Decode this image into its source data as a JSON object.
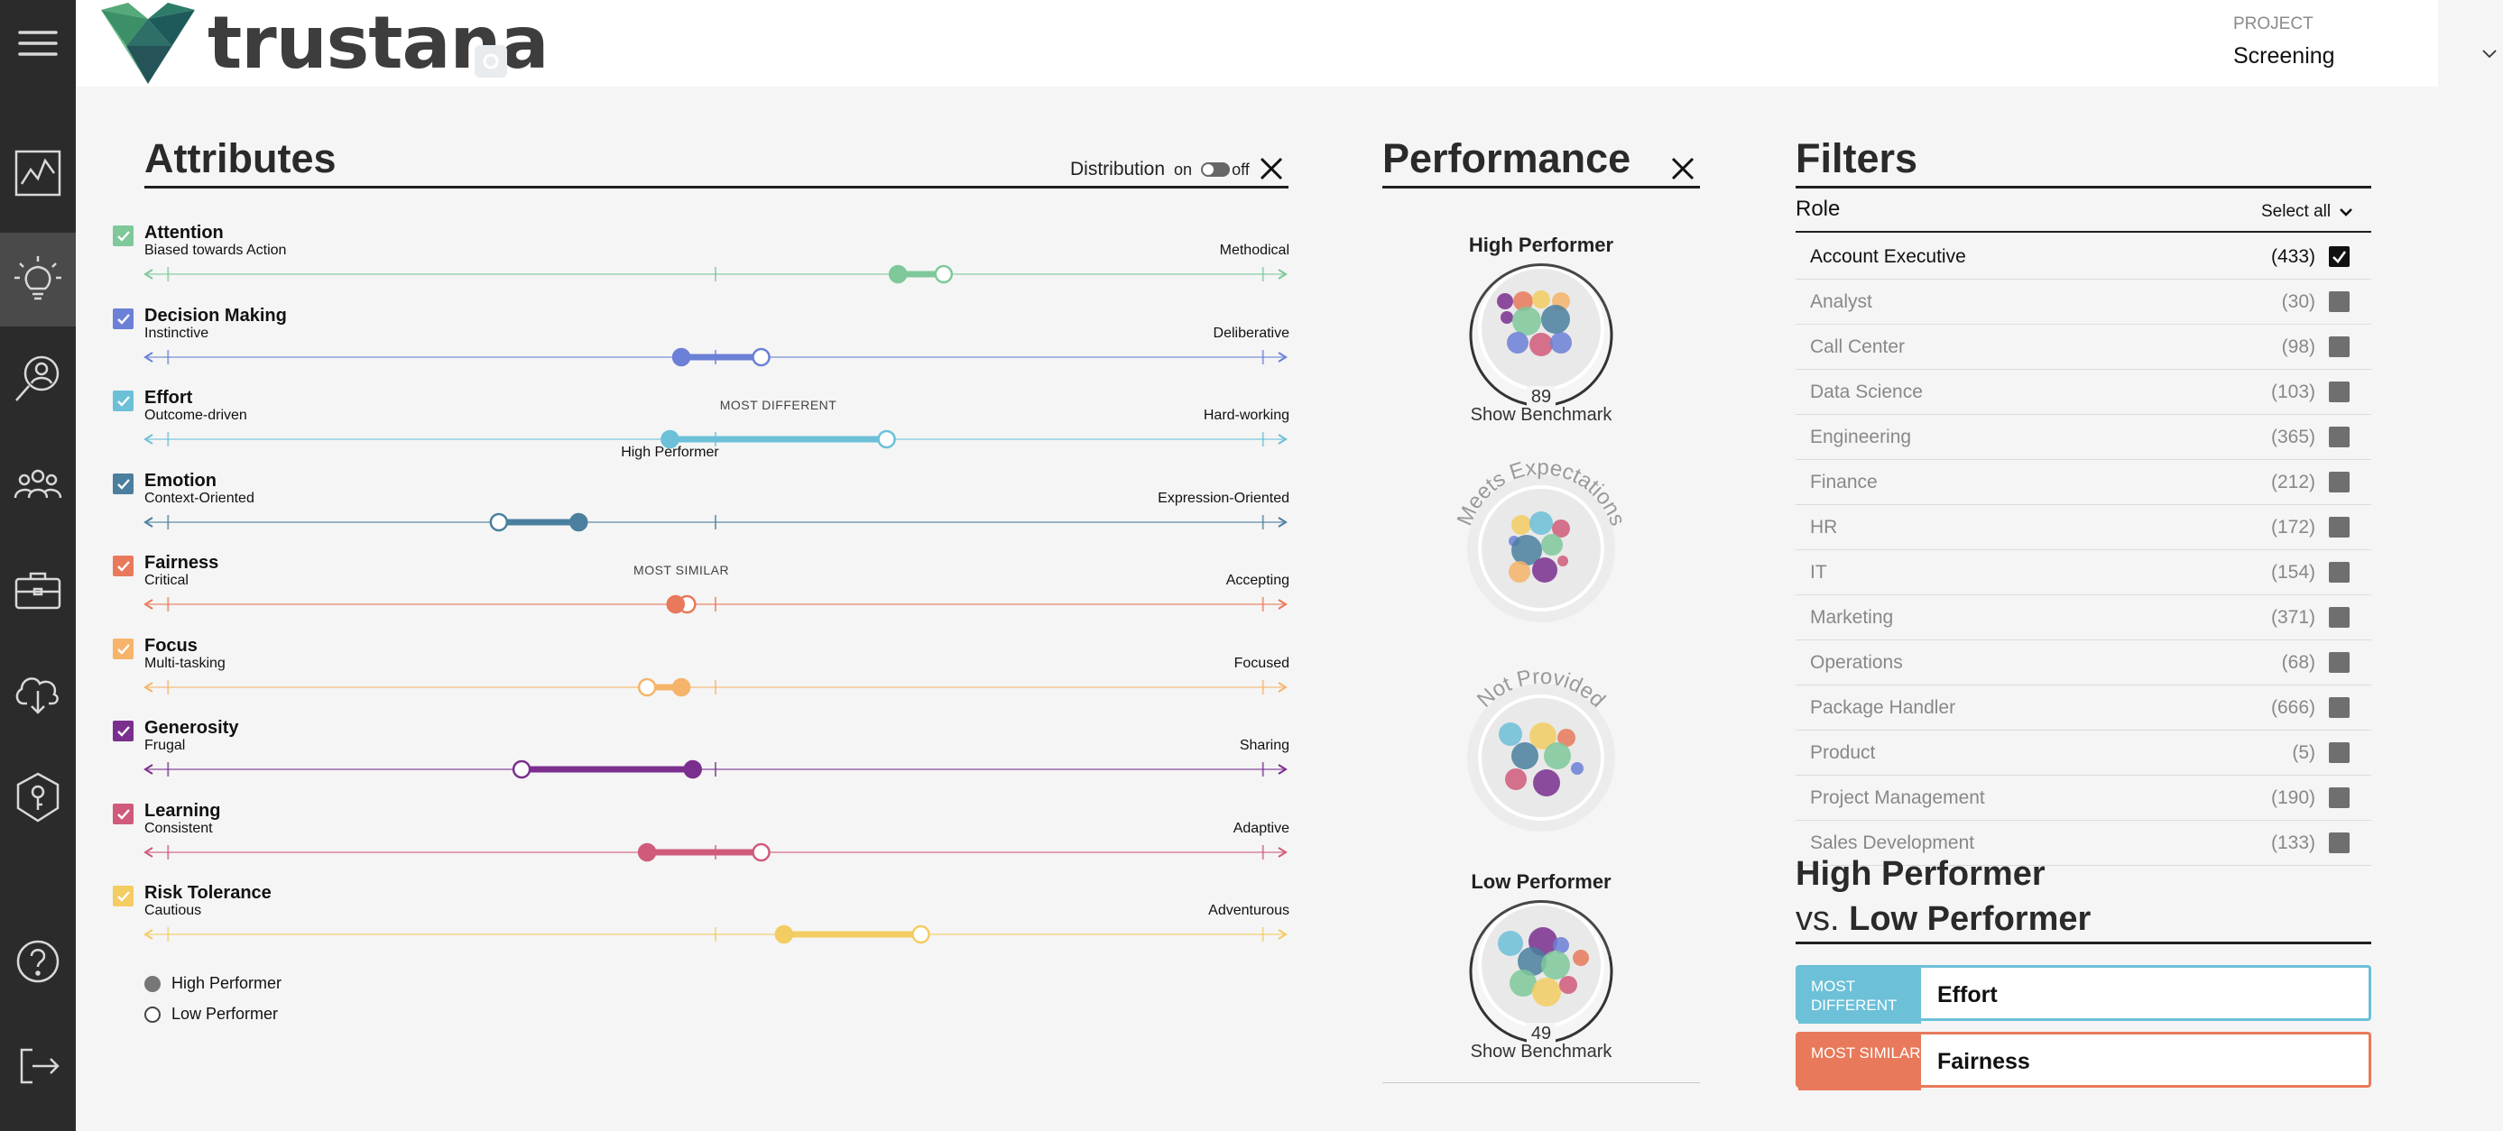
{
  "app": {
    "brand": "trustana"
  },
  "header": {
    "project_label": "PROJECT",
    "project_value": "Screening"
  },
  "sidebar": {
    "items": [
      {
        "icon": "menu-icon"
      },
      {
        "icon": "chart-icon"
      },
      {
        "icon": "lightbulb-icon",
        "active": true
      },
      {
        "icon": "person-search-icon"
      },
      {
        "icon": "team-icon"
      },
      {
        "icon": "briefcase-icon"
      },
      {
        "icon": "download-icon"
      },
      {
        "icon": "key-shield-icon"
      },
      {
        "icon": "help-icon"
      },
      {
        "icon": "logout-icon"
      }
    ]
  },
  "attributes": {
    "title": "Attributes",
    "distribution_label": "Distribution",
    "toggle_on": "on",
    "toggle_off": "off",
    "items": [
      {
        "name": "Attention",
        "low": "Biased towards Action",
        "high": "Methodical",
        "color": "#7ec89a",
        "high_performer": 0.66,
        "low_performer": 0.7
      },
      {
        "name": "Decision Making",
        "low": "Instinctive",
        "high": "Deliberative",
        "color": "#6b80d6",
        "high_performer": 0.47,
        "low_performer": 0.54
      },
      {
        "name": "Effort",
        "low": "Outcome-driven",
        "high": "Hard-working",
        "color": "#6cc0d8",
        "high_performer": 0.46,
        "low_performer": 0.65,
        "annotation": "MOST DIFFERENT",
        "marker_label": "High Performer"
      },
      {
        "name": "Emotion",
        "low": "Context-Oriented",
        "high": "Expression-Oriented",
        "color": "#4a7f9e",
        "high_performer": 0.38,
        "low_performer": 0.31
      },
      {
        "name": "Fairness",
        "low": "Critical",
        "high": "Accepting",
        "color": "#e8795a",
        "high_performer": 0.465,
        "low_performer": 0.475,
        "annotation": "MOST SIMILAR"
      },
      {
        "name": "Focus",
        "low": "Multi-tasking",
        "high": "Focused",
        "color": "#f5b46a",
        "high_performer": 0.47,
        "low_performer": 0.44
      },
      {
        "name": "Generosity",
        "low": "Frugal",
        "high": "Sharing",
        "color": "#7a2f8e",
        "high_performer": 0.48,
        "low_performer": 0.33
      },
      {
        "name": "Learning",
        "low": "Consistent",
        "high": "Adaptive",
        "color": "#d05a7a",
        "high_performer": 0.44,
        "low_performer": 0.54
      },
      {
        "name": "Risk Tolerance",
        "low": "Cautious",
        "high": "Adventurous",
        "color": "#f3cc62",
        "high_performer": 0.56,
        "low_performer": 0.68
      }
    ],
    "legend": {
      "high": "High Performer",
      "low": "Low Performer"
    }
  },
  "performance": {
    "title": "Performance",
    "groups": [
      {
        "label": "High Performer",
        "count": "89",
        "link": "Show Benchmark",
        "style": "titled"
      },
      {
        "label": "Meets Expectations",
        "style": "arched"
      },
      {
        "label": "Not Provided",
        "style": "arched"
      },
      {
        "label": "Low Performer",
        "count": "49",
        "link": "Show Benchmark",
        "style": "titled"
      }
    ]
  },
  "filters": {
    "title": "Filters",
    "role_label": "Role",
    "select_all": "Select all",
    "roles": [
      {
        "name": "Account Executive",
        "count": "(433)",
        "selected": true
      },
      {
        "name": "Analyst",
        "count": "(30)"
      },
      {
        "name": "Call Center",
        "count": "(98)"
      },
      {
        "name": "Data Science",
        "count": "(103)"
      },
      {
        "name": "Engineering",
        "count": "(365)"
      },
      {
        "name": "Finance",
        "count": "(212)"
      },
      {
        "name": "HR",
        "count": "(172)"
      },
      {
        "name": "IT",
        "count": "(154)"
      },
      {
        "name": "Marketing",
        "count": "(371)"
      },
      {
        "name": "Operations",
        "count": "(68)"
      },
      {
        "name": "Package Handler",
        "count": "(666)"
      },
      {
        "name": "Product",
        "count": "(5)"
      },
      {
        "name": "Project Management",
        "count": "(190)"
      },
      {
        "name": "Sales Development",
        "count": "(133)"
      }
    ]
  },
  "comparison": {
    "line1": "High Performer",
    "vs": "vs.",
    "line2": "Low Performer",
    "most_different_tag": "MOST DIFFERENT",
    "most_different_value": "Effort",
    "most_different_color": "#6cc0d8",
    "most_similar_tag": "MOST SIMILAR",
    "most_similar_value": "Fairness",
    "most_similar_color": "#e8795a"
  }
}
